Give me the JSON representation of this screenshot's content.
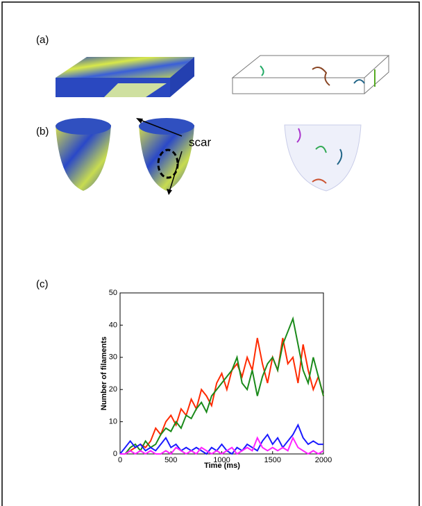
{
  "panels": [
    {
      "label": "(a)"
    },
    {
      "label": "(b)"
    },
    {
      "label": "(c)"
    }
  ],
  "annotation": "scar",
  "chart_data": {
    "type": "line",
    "xlabel": "Time (ms)",
    "ylabel": "Number of filaments",
    "x": [
      0,
      50,
      100,
      150,
      200,
      250,
      300,
      350,
      400,
      450,
      500,
      550,
      600,
      650,
      700,
      750,
      800,
      850,
      900,
      950,
      1000,
      1050,
      1100,
      1150,
      1200,
      1250,
      1300,
      1350,
      1400,
      1450,
      1500,
      1550,
      1600,
      1650,
      1700,
      1750,
      1800,
      1850,
      1900,
      1950,
      2000
    ],
    "series": [
      {
        "color": "#ff2a00",
        "values": [
          0,
          0,
          1,
          2,
          3,
          2,
          4,
          8,
          6,
          10,
          12,
          9,
          14,
          12,
          17,
          14,
          20,
          18,
          15,
          22,
          25,
          20,
          26,
          28,
          24,
          30,
          26,
          36,
          28,
          22,
          30,
          26,
          36,
          28,
          30,
          22,
          34,
          26,
          20,
          24,
          18
        ]
      },
      {
        "color": "#1a8a1a",
        "values": [
          0,
          0,
          2,
          3,
          1,
          4,
          2,
          3,
          6,
          8,
          7,
          10,
          8,
          12,
          11,
          14,
          16,
          13,
          18,
          20,
          22,
          24,
          26,
          30,
          22,
          20,
          26,
          18,
          24,
          28,
          30,
          26,
          34,
          38,
          42,
          34,
          26,
          22,
          30,
          24,
          18
        ]
      },
      {
        "color": "#1a1aff",
        "values": [
          0,
          2,
          4,
          2,
          3,
          1,
          2,
          1,
          3,
          5,
          2,
          3,
          1,
          2,
          1,
          2,
          1,
          0,
          2,
          1,
          3,
          1,
          0,
          2,
          1,
          3,
          2,
          1,
          4,
          6,
          3,
          5,
          2,
          4,
          6,
          9,
          5,
          3,
          4,
          3,
          3
        ]
      },
      {
        "color": "#ff22ff",
        "values": [
          0,
          0,
          1,
          0,
          1,
          0,
          1,
          0,
          0,
          1,
          0,
          2,
          1,
          0,
          1,
          0,
          2,
          1,
          0,
          1,
          0,
          1,
          2,
          0,
          1,
          2,
          1,
          5,
          2,
          1,
          2,
          1,
          2,
          1,
          5,
          2,
          1,
          0,
          1,
          0,
          1
        ]
      }
    ],
    "xlim": [
      0,
      2000
    ],
    "xticks": [
      0,
      500,
      1000,
      1500,
      2000
    ],
    "ylim": [
      0,
      50
    ],
    "yticks": [
      0,
      10,
      20,
      30,
      40,
      50
    ]
  }
}
